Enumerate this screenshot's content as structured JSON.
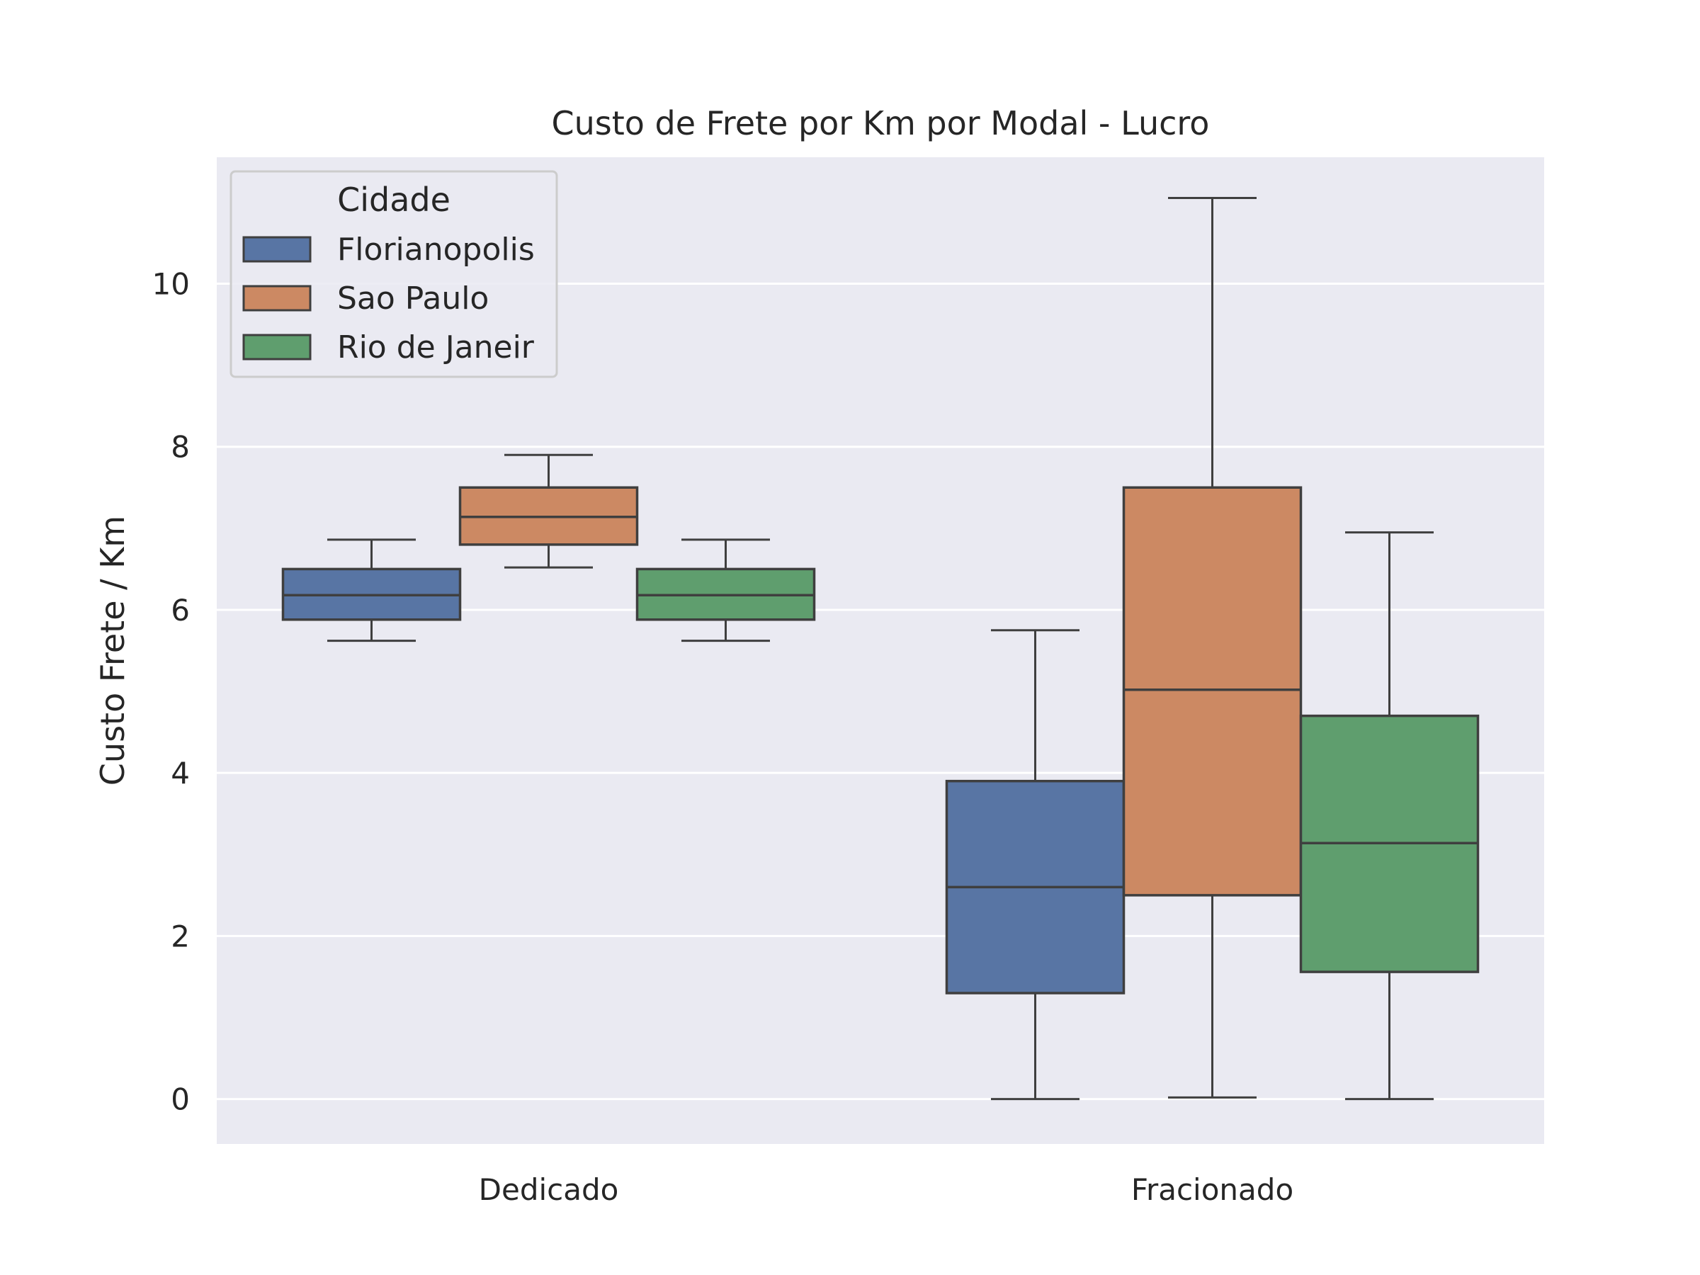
{
  "chart_data": {
    "type": "boxplot",
    "title": "Custo de Frete por Km por Modal - Lucro",
    "xlabel": "",
    "ylabel": "Custo Frete / Km",
    "categories": [
      "Dedicado",
      "Fracionado"
    ],
    "ylim": [
      -0.55,
      11.55
    ],
    "yticks": [
      0,
      2,
      4,
      6,
      8,
      10
    ],
    "grid": true,
    "background": "#eaeaf2",
    "legend": {
      "title": "Cidade",
      "placement": "top-left"
    },
    "series": [
      {
        "name": "Florianopolis",
        "color": "#5875a4",
        "boxes": [
          {
            "whisker_low": 5.62,
            "q1": 5.88,
            "median": 6.18,
            "q3": 6.5,
            "whisker_high": 6.86
          },
          {
            "whisker_low": 0.0,
            "q1": 1.3,
            "median": 2.6,
            "q3": 3.9,
            "whisker_high": 5.75
          }
        ]
      },
      {
        "name": "Sao Paulo",
        "color": "#cc8963",
        "boxes": [
          {
            "whisker_low": 6.52,
            "q1": 6.8,
            "median": 7.14,
            "q3": 7.5,
            "whisker_high": 7.9
          },
          {
            "whisker_low": 0.02,
            "q1": 2.5,
            "median": 5.02,
            "q3": 7.5,
            "whisker_high": 11.05
          }
        ]
      },
      {
        "name": "Rio de Janeir",
        "color": "#5f9e6e",
        "boxes": [
          {
            "whisker_low": 5.62,
            "q1": 5.88,
            "median": 6.18,
            "q3": 6.5,
            "whisker_high": 6.86
          },
          {
            "whisker_low": 0.0,
            "q1": 1.56,
            "median": 3.14,
            "q3": 4.7,
            "whisker_high": 6.95
          }
        ]
      }
    ]
  }
}
